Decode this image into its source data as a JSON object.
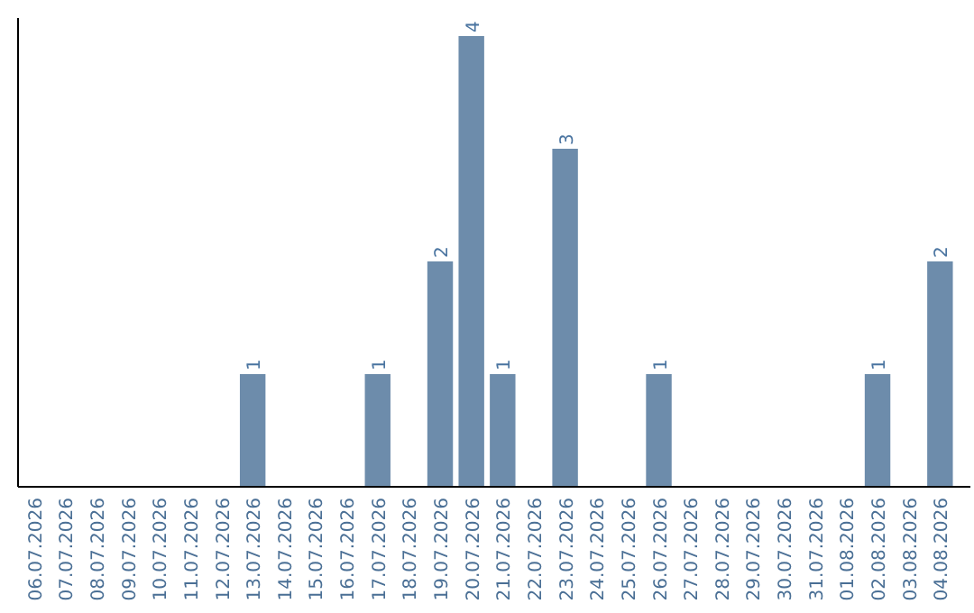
{
  "chart_data": {
    "type": "bar",
    "categories": [
      "06.07.2026",
      "07.07.2026",
      "08.07.2026",
      "09.07.2026",
      "10.07.2026",
      "11.07.2026",
      "12.07.2026",
      "13.07.2026",
      "14.07.2026",
      "15.07.2026",
      "16.07.2026",
      "17.07.2026",
      "18.07.2026",
      "19.07.2026",
      "20.07.2026",
      "21.07.2026",
      "22.07.2026",
      "23.07.2026",
      "24.07.2026",
      "25.07.2026",
      "26.07.2026",
      "27.07.2026",
      "28.07.2026",
      "29.07.2026",
      "30.07.2026",
      "31.07.2026",
      "01.08.2026",
      "02.08.2026",
      "03.08.2026",
      "04.08.2026"
    ],
    "values": [
      0,
      0,
      0,
      0,
      0,
      0,
      0,
      1,
      0,
      0,
      0,
      1,
      0,
      2,
      4,
      1,
      0,
      3,
      0,
      0,
      1,
      0,
      0,
      0,
      0,
      0,
      0,
      1,
      0,
      2
    ],
    "value_labels": [
      null,
      null,
      null,
      null,
      null,
      null,
      null,
      "1",
      null,
      null,
      null,
      "1",
      null,
      "2",
      "4",
      "1",
      null,
      "3",
      null,
      null,
      "1",
      null,
      null,
      null,
      null,
      null,
      null,
      "1",
      null,
      "2"
    ],
    "color": "#6d8cab"
  }
}
